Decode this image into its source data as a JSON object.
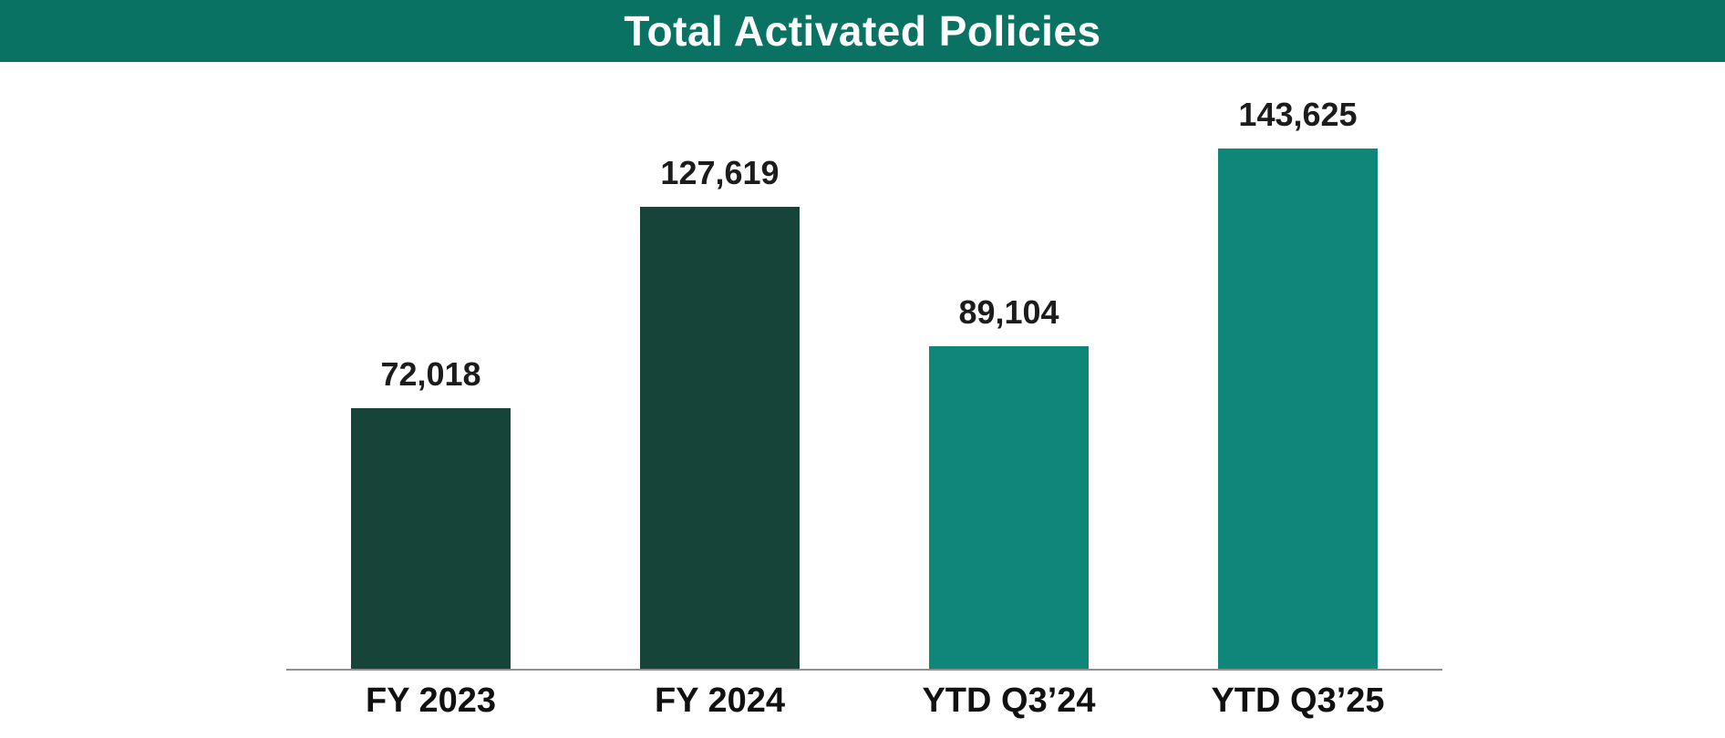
{
  "header": {
    "title": "Total Activated Policies",
    "background_color": "#0A7263",
    "text_color": "#FFFFFF"
  },
  "chart_data": {
    "type": "bar",
    "title": "Total Activated Policies",
    "categories": [
      "FY 2023",
      "FY 2024",
      "YTD Q3’24",
      "YTD Q3’25"
    ],
    "values": [
      72018,
      127619,
      89104,
      143625
    ],
    "value_labels": [
      "72,018",
      "127,619",
      "89,104",
      "143,625"
    ],
    "bar_colors": [
      "#164439",
      "#164439",
      "#0E8678",
      "#0E8678"
    ],
    "xlabel": "",
    "ylabel": "",
    "ylim": [
      0,
      150000
    ],
    "grid": false,
    "legend": "none",
    "value_label_position": "above",
    "axis_line_color": "#8F8F8F"
  }
}
